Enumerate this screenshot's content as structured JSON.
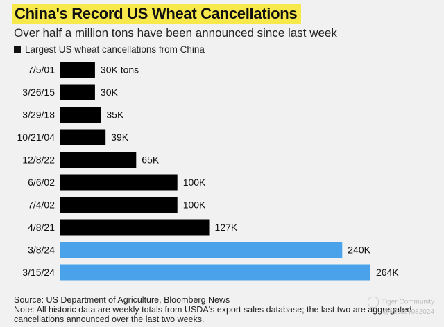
{
  "header": {
    "title": "China's Record US Wheat Cancellations",
    "subtitle": "Over half a million tons have been announced since last week"
  },
  "legend": {
    "label": "Largest US wheat cancellations from China"
  },
  "chart_data": {
    "type": "bar",
    "orientation": "horizontal",
    "title": "China's Record US Wheat Cancellations",
    "subtitle": "Over half a million tons have been announced since last week",
    "legend": [
      "Largest US wheat cancellations from China"
    ],
    "xlabel": "",
    "ylabel": "",
    "unit": "thousand tons",
    "xlim": [
      0,
      264
    ],
    "grid": false,
    "categories": [
      "7/5/01",
      "3/26/15",
      "3/29/18",
      "10/21/04",
      "12/8/22",
      "6/6/02",
      "7/4/02",
      "4/8/21",
      "3/8/24",
      "3/15/24"
    ],
    "values": [
      30,
      30,
      35,
      39,
      65,
      100,
      100,
      127,
      240,
      264
    ],
    "value_labels": [
      "30K tons",
      "30K",
      "35K",
      "39K",
      "65K",
      "100K",
      "100K",
      "127K",
      "240K",
      "264K"
    ],
    "colors": [
      "#000000",
      "#000000",
      "#000000",
      "#000000",
      "#000000",
      "#000000",
      "#000000",
      "#000000",
      "#4aa3ea",
      "#4aa3ea"
    ]
  },
  "footer": {
    "source": "Source: US Department of Agriculture, Bloomberg News",
    "note_line1": "Note: All historic data are weekly totals from USDA's export sales database; the last two are aggregated",
    "note_line2": "cancellations announced over the last two weeks."
  },
  "watermark": {
    "brand": "Tiger Community",
    "handle": "@Mickey082024"
  }
}
